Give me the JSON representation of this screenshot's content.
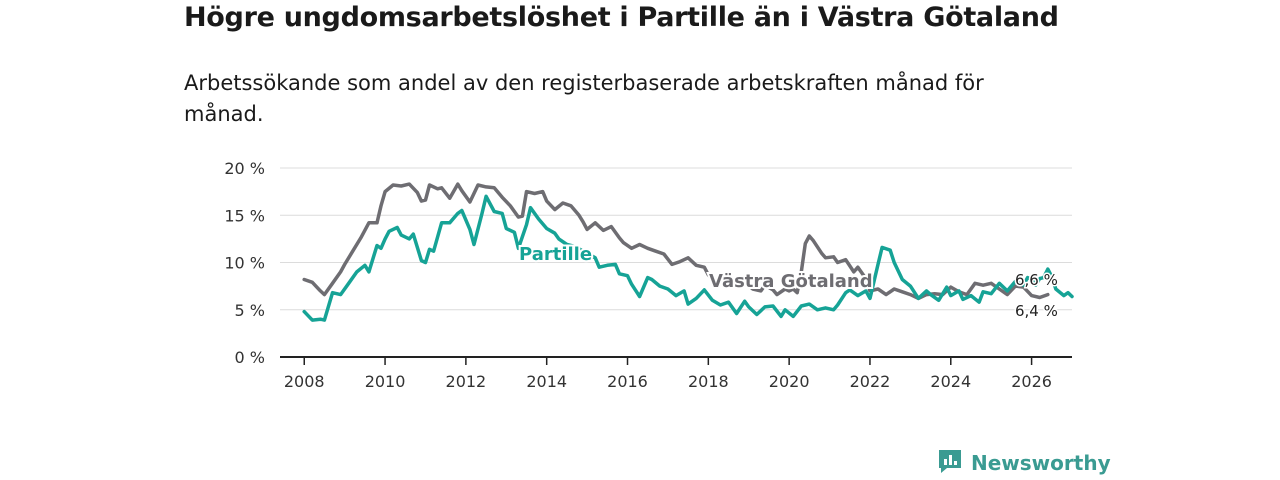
{
  "title": "Högre ungdomsarbetslöshet i Partille än i Västra Götaland",
  "subtitle": "Arbetssökande som andel av den registerbaserade arbetskraften månad för månad.",
  "brand": {
    "name": "Newsworthy",
    "icon": "newsworthy-logo-icon"
  },
  "colors": {
    "partille": "#16a396",
    "vastra_gotaland": "#6e6d72",
    "grid": "#dcdcdc",
    "axis": "#222222",
    "brand": "#3a9b92"
  },
  "chart_data": {
    "type": "line",
    "title": "Högre ungdomsarbetslöshet i Partille än i Västra Götaland",
    "xlabel": "",
    "ylabel": "",
    "xlim": [
      2007.4,
      2027.0
    ],
    "ylim": [
      0,
      20
    ],
    "x_ticks": [
      2008,
      2010,
      2012,
      2014,
      2016,
      2018,
      2020,
      2022,
      2024,
      2026
    ],
    "x_tick_labels": [
      "2008",
      "2010",
      "2012",
      "2014",
      "2016",
      "2018",
      "2020",
      "2022",
      "2024",
      "2026"
    ],
    "y_ticks": [
      0,
      5,
      10,
      15,
      20
    ],
    "y_tick_labels": [
      "0 %",
      "5 %",
      "10 %",
      "15 %",
      "20 %"
    ],
    "grid": true,
    "series": [
      {
        "name": "Västra Götaland",
        "label": "Västra Götaland",
        "end_label": "6,6 %",
        "points": [
          [
            2008.0,
            8.2
          ],
          [
            2008.2,
            7.9
          ],
          [
            2008.4,
            7.0
          ],
          [
            2008.5,
            6.6
          ],
          [
            2008.7,
            7.8
          ],
          [
            2008.9,
            9.0
          ],
          [
            2009.0,
            9.8
          ],
          [
            2009.2,
            11.2
          ],
          [
            2009.4,
            12.6
          ],
          [
            2009.6,
            14.2
          ],
          [
            2009.8,
            14.2
          ],
          [
            2009.9,
            16.0
          ],
          [
            2010.0,
            17.5
          ],
          [
            2010.2,
            18.2
          ],
          [
            2010.4,
            18.1
          ],
          [
            2010.6,
            18.3
          ],
          [
            2010.8,
            17.4
          ],
          [
            2010.9,
            16.5
          ],
          [
            2011.0,
            16.6
          ],
          [
            2011.1,
            18.2
          ],
          [
            2011.3,
            17.8
          ],
          [
            2011.4,
            17.9
          ],
          [
            2011.6,
            16.8
          ],
          [
            2011.8,
            18.3
          ],
          [
            2011.9,
            17.6
          ],
          [
            2012.1,
            16.4
          ],
          [
            2012.3,
            18.2
          ],
          [
            2012.5,
            18.0
          ],
          [
            2012.7,
            17.9
          ],
          [
            2012.9,
            16.9
          ],
          [
            2013.1,
            16.0
          ],
          [
            2013.3,
            14.8
          ],
          [
            2013.4,
            14.9
          ],
          [
            2013.5,
            17.5
          ],
          [
            2013.7,
            17.3
          ],
          [
            2013.9,
            17.5
          ],
          [
            2014.0,
            16.5
          ],
          [
            2014.2,
            15.6
          ],
          [
            2014.4,
            16.3
          ],
          [
            2014.6,
            16.0
          ],
          [
            2014.8,
            15.0
          ],
          [
            2014.9,
            14.3
          ],
          [
            2015.0,
            13.5
          ],
          [
            2015.2,
            14.2
          ],
          [
            2015.4,
            13.4
          ],
          [
            2015.6,
            13.8
          ],
          [
            2015.8,
            12.6
          ],
          [
            2015.9,
            12.1
          ],
          [
            2016.1,
            11.5
          ],
          [
            2016.3,
            11.9
          ],
          [
            2016.5,
            11.5
          ],
          [
            2016.7,
            11.2
          ],
          [
            2016.9,
            10.9
          ],
          [
            2017.1,
            9.8
          ],
          [
            2017.3,
            10.1
          ],
          [
            2017.5,
            10.5
          ],
          [
            2017.7,
            9.7
          ],
          [
            2017.9,
            9.5
          ],
          [
            2018.0,
            8.7
          ],
          [
            2018.2,
            7.8
          ],
          [
            2018.4,
            8.3
          ],
          [
            2018.6,
            8.0
          ],
          [
            2018.7,
            8.0
          ],
          [
            2018.9,
            7.9
          ],
          [
            2019.1,
            7.2
          ],
          [
            2019.3,
            7.0
          ],
          [
            2019.4,
            7.6
          ],
          [
            2019.6,
            7.1
          ],
          [
            2019.7,
            6.6
          ],
          [
            2019.9,
            7.2
          ],
          [
            2020.0,
            7.0
          ],
          [
            2020.1,
            7.2
          ],
          [
            2020.2,
            6.8
          ],
          [
            2020.3,
            9.0
          ],
          [
            2020.4,
            12.0
          ],
          [
            2020.5,
            12.8
          ],
          [
            2020.6,
            12.3
          ],
          [
            2020.8,
            11.0
          ],
          [
            2020.9,
            10.5
          ],
          [
            2021.1,
            10.6
          ],
          [
            2021.2,
            10.0
          ],
          [
            2021.4,
            10.3
          ],
          [
            2021.6,
            9.0
          ],
          [
            2021.7,
            9.5
          ],
          [
            2021.9,
            8.3
          ],
          [
            2022.0,
            7.0
          ],
          [
            2022.2,
            7.2
          ],
          [
            2022.4,
            6.6
          ],
          [
            2022.6,
            7.2
          ],
          [
            2022.8,
            6.9
          ],
          [
            2023.0,
            6.6
          ],
          [
            2023.2,
            6.2
          ],
          [
            2023.4,
            6.6
          ],
          [
            2023.6,
            6.7
          ],
          [
            2023.8,
            6.6
          ],
          [
            2024.0,
            7.4
          ],
          [
            2024.2,
            6.9
          ],
          [
            2024.4,
            6.6
          ],
          [
            2024.6,
            7.8
          ],
          [
            2024.8,
            7.6
          ],
          [
            2025.0,
            7.8
          ],
          [
            2025.2,
            7.2
          ],
          [
            2025.4,
            6.6
          ],
          [
            2025.6,
            7.5
          ],
          [
            2025.8,
            7.4
          ],
          [
            2026.0,
            6.5
          ],
          [
            2026.2,
            6.3
          ],
          [
            2026.4,
            6.6
          ]
        ]
      },
      {
        "name": "Partille",
        "label": "Partille",
        "end_label": "6,4 %",
        "points": [
          [
            2008.0,
            4.8
          ],
          [
            2008.2,
            3.9
          ],
          [
            2008.4,
            4.0
          ],
          [
            2008.5,
            3.9
          ],
          [
            2008.7,
            6.8
          ],
          [
            2008.9,
            6.6
          ],
          [
            2009.1,
            7.8
          ],
          [
            2009.3,
            9.0
          ],
          [
            2009.5,
            9.7
          ],
          [
            2009.6,
            9.0
          ],
          [
            2009.8,
            11.8
          ],
          [
            2009.9,
            11.5
          ],
          [
            2010.0,
            12.5
          ],
          [
            2010.1,
            13.3
          ],
          [
            2010.3,
            13.7
          ],
          [
            2010.4,
            12.9
          ],
          [
            2010.6,
            12.5
          ],
          [
            2010.7,
            13.0
          ],
          [
            2010.9,
            10.2
          ],
          [
            2011.0,
            10.0
          ],
          [
            2011.1,
            11.4
          ],
          [
            2011.2,
            11.2
          ],
          [
            2011.4,
            14.2
          ],
          [
            2011.6,
            14.2
          ],
          [
            2011.8,
            15.2
          ],
          [
            2011.9,
            15.5
          ],
          [
            2012.1,
            13.5
          ],
          [
            2012.2,
            11.9
          ],
          [
            2012.4,
            15.2
          ],
          [
            2012.5,
            17.0
          ],
          [
            2012.7,
            15.4
          ],
          [
            2012.9,
            15.2
          ],
          [
            2013.0,
            13.6
          ],
          [
            2013.2,
            13.2
          ],
          [
            2013.3,
            11.5
          ],
          [
            2013.5,
            14.0
          ],
          [
            2013.6,
            15.8
          ],
          [
            2013.8,
            14.6
          ],
          [
            2014.0,
            13.6
          ],
          [
            2014.2,
            13.1
          ],
          [
            2014.3,
            12.5
          ],
          [
            2014.5,
            11.9
          ],
          [
            2014.7,
            11.7
          ],
          [
            2014.9,
            11.2
          ],
          [
            2015.0,
            11.0
          ],
          [
            2015.2,
            10.5
          ],
          [
            2015.3,
            9.5
          ],
          [
            2015.5,
            9.7
          ],
          [
            2015.7,
            9.8
          ],
          [
            2015.8,
            8.8
          ],
          [
            2016.0,
            8.6
          ],
          [
            2016.1,
            7.7
          ],
          [
            2016.3,
            6.4
          ],
          [
            2016.5,
            8.4
          ],
          [
            2016.6,
            8.2
          ],
          [
            2016.8,
            7.5
          ],
          [
            2017.0,
            7.2
          ],
          [
            2017.2,
            6.5
          ],
          [
            2017.4,
            7.0
          ],
          [
            2017.5,
            5.6
          ],
          [
            2017.7,
            6.2
          ],
          [
            2017.9,
            7.1
          ],
          [
            2018.1,
            6.0
          ],
          [
            2018.3,
            5.5
          ],
          [
            2018.5,
            5.8
          ],
          [
            2018.7,
            4.6
          ],
          [
            2018.9,
            5.9
          ],
          [
            2019.0,
            5.3
          ],
          [
            2019.2,
            4.5
          ],
          [
            2019.4,
            5.3
          ],
          [
            2019.6,
            5.4
          ],
          [
            2019.8,
            4.3
          ],
          [
            2019.9,
            5.0
          ],
          [
            2020.1,
            4.3
          ],
          [
            2020.3,
            5.4
          ],
          [
            2020.5,
            5.6
          ],
          [
            2020.7,
            5.0
          ],
          [
            2020.9,
            5.2
          ],
          [
            2021.1,
            5.0
          ],
          [
            2021.2,
            5.5
          ],
          [
            2021.4,
            6.8
          ],
          [
            2021.5,
            7.1
          ],
          [
            2021.7,
            6.5
          ],
          [
            2021.9,
            7.0
          ],
          [
            2022.0,
            6.2
          ],
          [
            2022.2,
            9.8
          ],
          [
            2022.3,
            11.6
          ],
          [
            2022.5,
            11.3
          ],
          [
            2022.6,
            10.0
          ],
          [
            2022.8,
            8.2
          ],
          [
            2023.0,
            7.5
          ],
          [
            2023.2,
            6.2
          ],
          [
            2023.4,
            7.0
          ],
          [
            2023.5,
            6.6
          ],
          [
            2023.7,
            6.0
          ],
          [
            2023.9,
            7.4
          ],
          [
            2024.0,
            6.5
          ],
          [
            2024.2,
            7.0
          ],
          [
            2024.3,
            6.1
          ],
          [
            2024.5,
            6.5
          ],
          [
            2024.7,
            5.8
          ],
          [
            2024.8,
            6.9
          ],
          [
            2025.0,
            6.7
          ],
          [
            2025.2,
            7.8
          ],
          [
            2025.4,
            7.0
          ],
          [
            2025.6,
            8.0
          ],
          [
            2025.8,
            7.6
          ],
          [
            2025.9,
            8.4
          ],
          [
            2026.0,
            8.2
          ],
          [
            2026.1,
            7.6
          ],
          [
            2026.2,
            8.3
          ],
          [
            2026.3,
            8.4
          ],
          [
            2026.4,
            9.3
          ],
          [
            2026.5,
            8.5
          ],
          [
            2026.6,
            7.2
          ],
          [
            2026.8,
            6.5
          ],
          [
            2026.9,
            6.8
          ],
          [
            2027.0,
            6.4
          ]
        ]
      }
    ]
  }
}
